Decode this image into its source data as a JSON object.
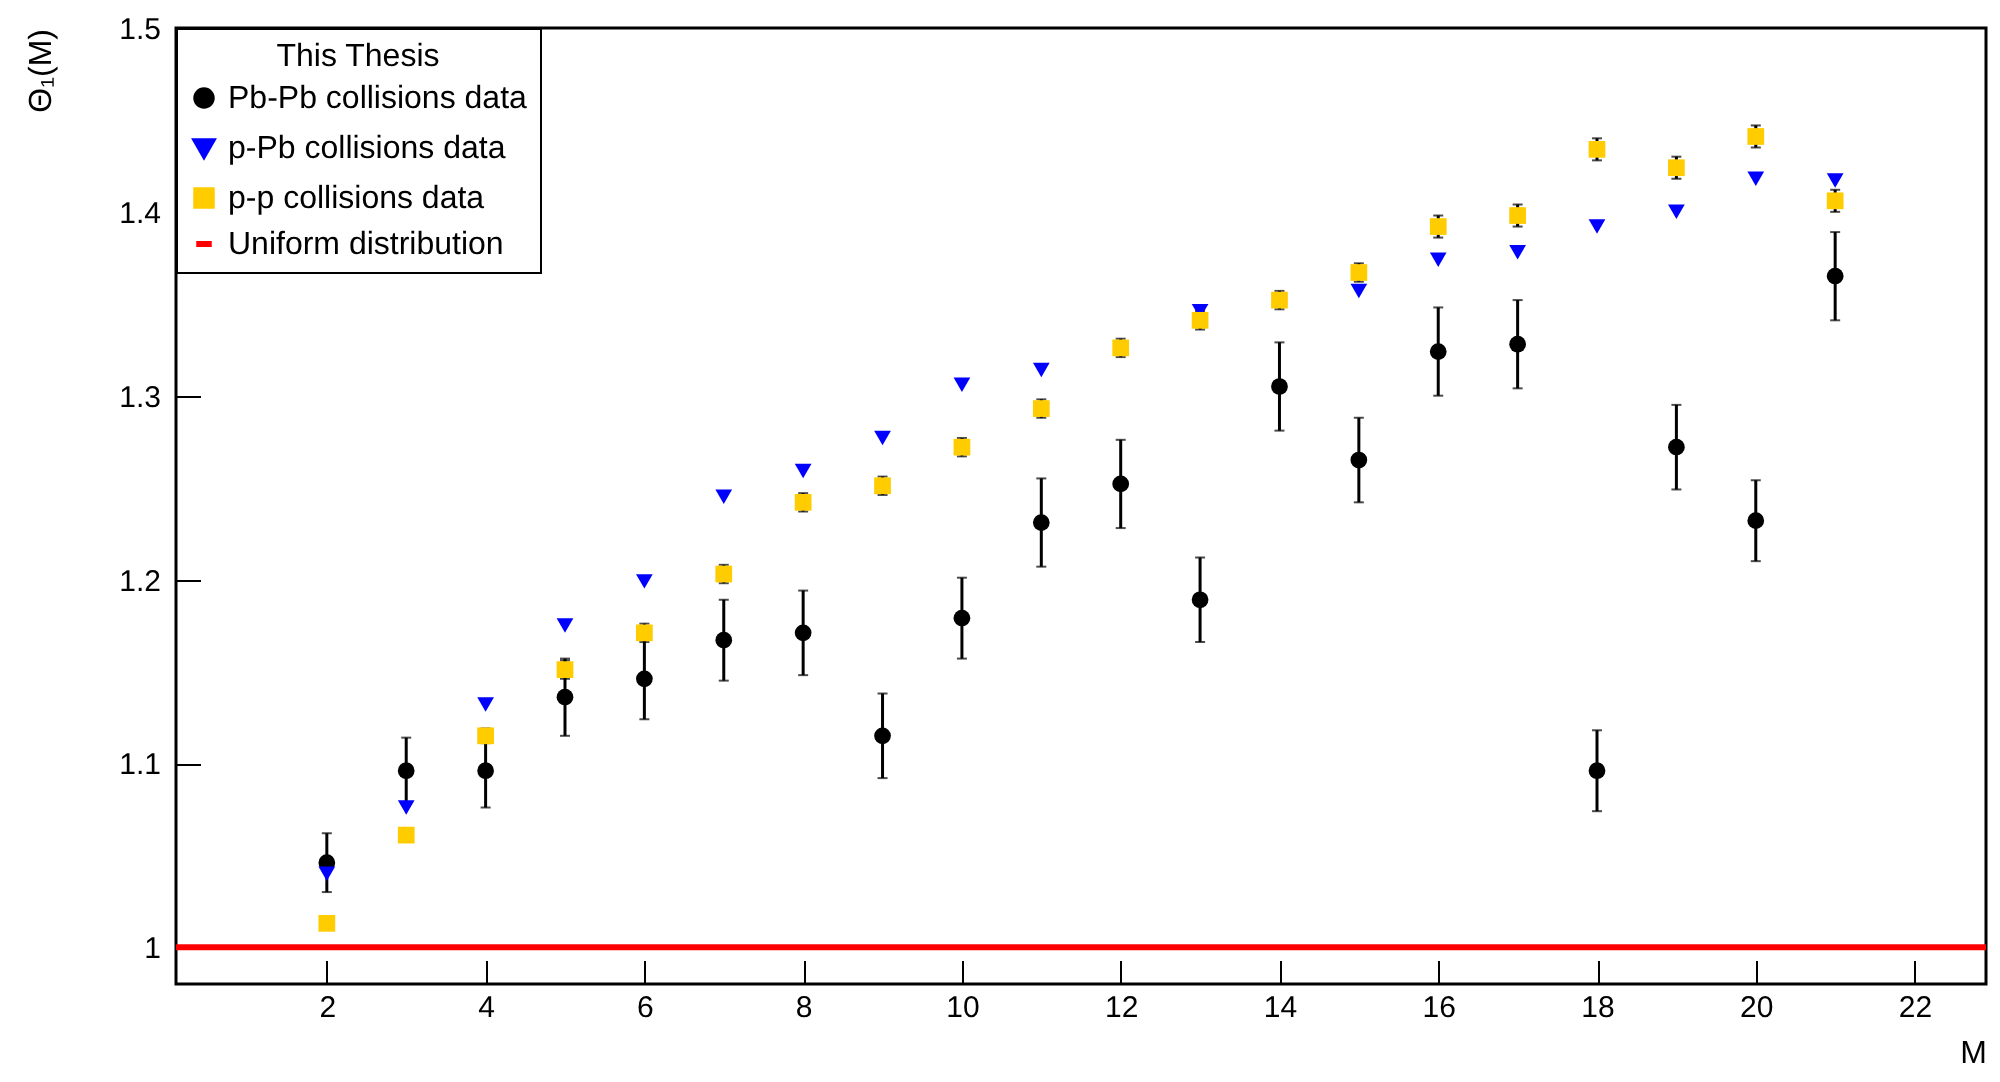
{
  "chart_data": {
    "type": "scatter",
    "xlabel": "M",
    "ylabel": "Θ₁(M)",
    "legend_title": "This Thesis",
    "legend": "top left",
    "grid": false,
    "x": [
      2,
      3,
      4,
      5,
      6,
      7,
      8,
      9,
      10,
      11,
      12,
      13,
      14,
      15,
      16,
      17,
      18,
      19,
      20,
      21
    ],
    "xlim": [
      0.1,
      22.9
    ],
    "xticks": [
      2,
      4,
      6,
      8,
      10,
      12,
      14,
      16,
      18,
      20,
      22
    ],
    "ylim": [
      0.98,
      1.5
    ],
    "yticks": [
      1,
      1.1,
      1.2,
      1.3,
      1.4,
      1.5
    ],
    "series": [
      {
        "name": "Pb-Pb collisions data",
        "color": "#000000",
        "marker": "circle",
        "values": [
          1.046,
          1.096,
          1.096,
          1.136,
          1.146,
          1.167,
          1.171,
          1.115,
          1.179,
          1.231,
          1.252,
          1.189,
          1.305,
          1.265,
          1.324,
          1.328,
          1.096,
          1.272,
          1.232,
          1.365
        ],
        "errors": [
          0.016,
          0.018,
          0.02,
          0.021,
          0.022,
          0.022,
          0.023,
          0.023,
          0.022,
          0.024,
          0.024,
          0.023,
          0.024,
          0.023,
          0.024,
          0.024,
          0.022,
          0.023,
          0.022,
          0.024
        ]
      },
      {
        "name": "p-Pb collisions data",
        "color": "#0000ff",
        "marker": "triangle",
        "values": [
          1.04,
          1.076,
          1.132,
          1.175,
          1.199,
          1.245,
          1.259,
          1.277,
          1.306,
          1.314,
          null,
          1.346,
          null,
          1.357,
          1.374,
          1.378,
          1.392,
          1.4,
          1.418,
          1.417
        ]
      },
      {
        "name": "p-p collisions data",
        "color": "#ffcc00",
        "marker": "square",
        "values": [
          1.013,
          1.061,
          1.115,
          1.151,
          1.171,
          1.203,
          1.242,
          1.251,
          1.272,
          1.293,
          1.326,
          1.341,
          1.352,
          1.367,
          1.392,
          1.398,
          1.434,
          1.424,
          1.441,
          1.406
        ],
        "errors": [
          null,
          null,
          0.004,
          0.005,
          0.005,
          0.005,
          0.005,
          0.005,
          0.005,
          0.005,
          0.005,
          0.005,
          0.005,
          0.005,
          0.006,
          0.006,
          0.006,
          0.006,
          0.006,
          0.006
        ]
      },
      {
        "name": "Uniform distribution",
        "type": "line",
        "color": "#ff0000",
        "x": [
          0.1,
          22.9
        ],
        "values": [
          1,
          1
        ]
      }
    ]
  }
}
